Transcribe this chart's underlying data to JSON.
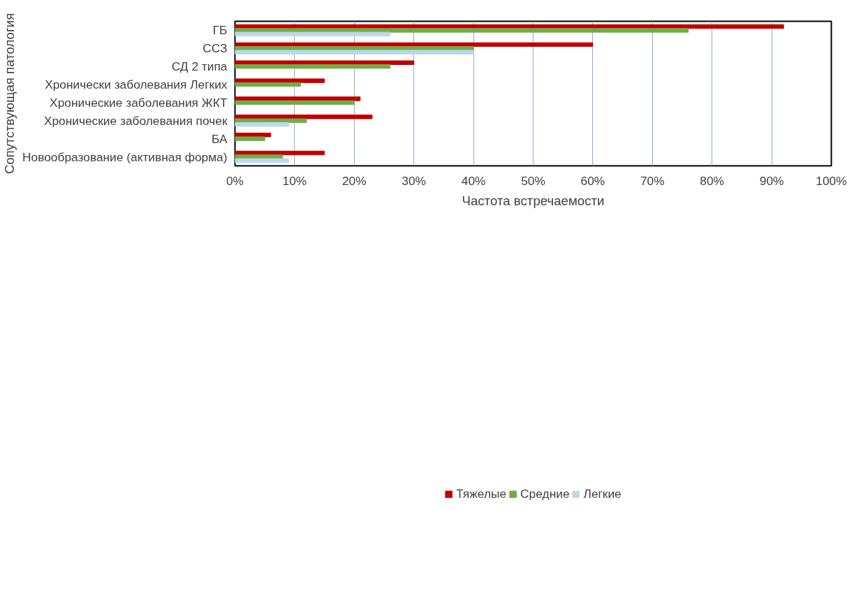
{
  "chart_data": {
    "type": "bar",
    "orientation": "horizontal",
    "xlabel": "Частота встречаемости",
    "ylabel": "Сопутствующая патология",
    "categories": [
      "ГБ",
      "ССЗ",
      "СД 2 типа",
      "Хронически заболевания Легких",
      "Хронические заболевания ЖКТ",
      "Хронические заболевания почек",
      "БА",
      "Новообразование (активная форма)"
    ],
    "series": [
      {
        "name": "Тяжелые",
        "color": "#c00000",
        "values": [
          92,
          60,
          30,
          15,
          21,
          23,
          6,
          15
        ]
      },
      {
        "name": "Средние",
        "color": "#70ad47",
        "values": [
          76,
          40,
          26,
          11,
          20,
          12,
          5,
          8
        ]
      },
      {
        "name": "Легкие",
        "color": "#bdd7ee",
        "values": [
          26,
          40,
          null,
          null,
          null,
          9,
          null,
          9
        ]
      }
    ],
    "xlim": [
      0,
      100
    ],
    "xticks": [
      {
        "value": 0,
        "label": "0%"
      },
      {
        "value": 10,
        "label": "10%"
      },
      {
        "value": 20,
        "label": "20%"
      },
      {
        "value": 30,
        "label": "30%"
      },
      {
        "value": 40,
        "label": "40%"
      },
      {
        "value": 50,
        "label": "50%"
      },
      {
        "value": 60,
        "label": "60%"
      },
      {
        "value": 70,
        "label": "70%"
      },
      {
        "value": 80,
        "label": "80%"
      },
      {
        "value": 90,
        "label": "90%"
      },
      {
        "value": 100,
        "label": "100%"
      }
    ],
    "grid": "x",
    "legend": "bottom"
  }
}
